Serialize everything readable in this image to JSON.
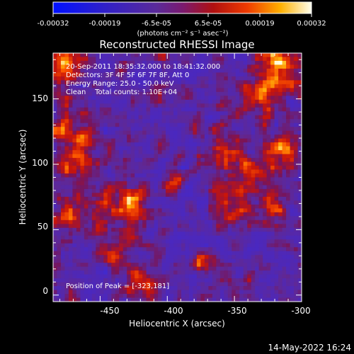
{
  "colorbar": {
    "tick_labels": [
      "-0.00032",
      "-0.00019",
      "-6.5e-05",
      "6.5e-05",
      "0.00019",
      "0.00032"
    ],
    "units_label": "(photons cm⁻² s⁻¹ asec⁻²)"
  },
  "chart_data": {
    "type": "heatmap",
    "title": "Reconstructed RHESSI Image",
    "xlabel": "Heliocentric X (arcsec)",
    "ylabel": "Heliocentric Y (arcsec)",
    "xlim": [
      -485,
      -300
    ],
    "ylim": [
      -5,
      185
    ],
    "x_ticks": [
      -450,
      -400,
      -350,
      -300
    ],
    "y_ticks": [
      0,
      50,
      100,
      150
    ],
    "colorscale_range": [
      -0.00032,
      0.00032
    ],
    "annotations": [
      "20-Sep-2011 18:35:32.000 to 18:41:32.000",
      "Detectors: 3F 4F 5F 6F 7F 8F, Att 0",
      "Energy Range: 25.0 - 50.0 keV",
      "Clean    Total counts: 1.10E+04"
    ],
    "peak_label": "Position of Peak = [-323,181]",
    "peak_position": [
      -323,
      181
    ]
  },
  "timestamp": "14-May-2022 16:24"
}
